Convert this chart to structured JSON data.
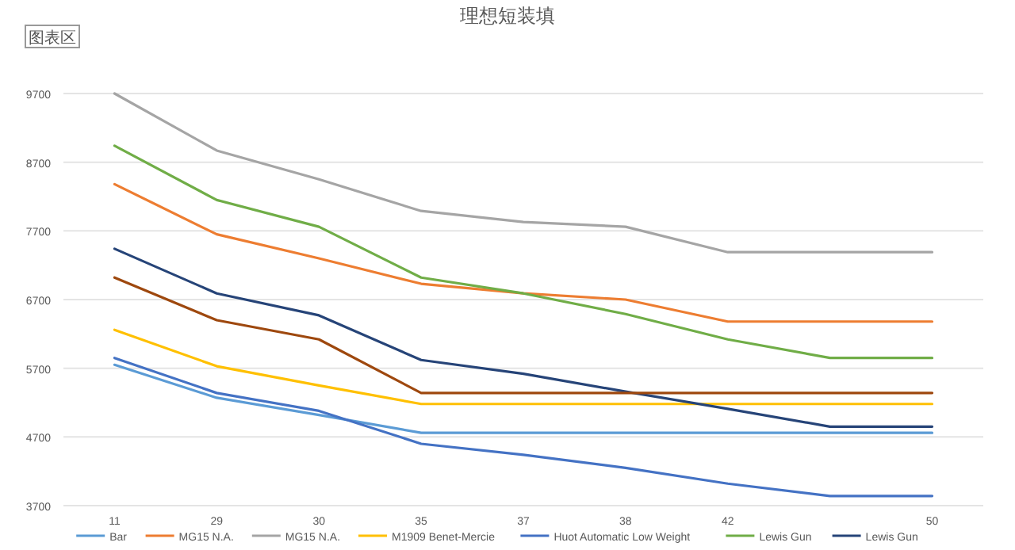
{
  "chart_data": {
    "type": "line",
    "title": "理想短装填",
    "annotations": [
      "图表区"
    ],
    "categories": [
      "11",
      "29",
      "30",
      "35",
      "37",
      "38",
      "42",
      null,
      "50"
    ],
    "ylim": [
      3700,
      9700
    ],
    "yticks": [
      3700,
      4700,
      5700,
      6700,
      7700,
      8700,
      9700
    ],
    "grid": "y",
    "legend": "bottom",
    "marker": "none",
    "line_style": "solid",
    "series": [
      {
        "name": "Bar",
        "color": "#5b9bd5",
        "values": [
          5750,
          5270,
          5020,
          4760,
          4760,
          4760,
          4760,
          4760,
          4760
        ]
      },
      {
        "name": "MG15 N.A.",
        "color": "#ed7d31",
        "values": [
          8380,
          7650,
          7300,
          6930,
          6790,
          6700,
          6380,
          6380,
          6380
        ]
      },
      {
        "name": "MG15 N.A.",
        "color": "#a5a5a5",
        "values": [
          9700,
          8870,
          8450,
          7990,
          7830,
          7760,
          7390,
          7390,
          7390
        ]
      },
      {
        "name": "M1909 Benet-Mercie",
        "color": "#ffc000",
        "values": [
          6260,
          5730,
          5450,
          5180,
          5180,
          5180,
          5180,
          5180,
          5180
        ]
      },
      {
        "name": "Huot Automatic Low Weight",
        "color": "#4472c4",
        "values": [
          5850,
          5340,
          5080,
          4600,
          4440,
          4250,
          4020,
          3840,
          3840
        ]
      },
      {
        "name": "Lewis Gun",
        "color": "#70ad47",
        "values": [
          8940,
          8150,
          7760,
          7020,
          6790,
          6490,
          6120,
          5850,
          5850
        ]
      },
      {
        "name": "Lewis Gun",
        "color": "#264478",
        "values": [
          7440,
          6790,
          6470,
          5820,
          5620,
          5360,
          5110,
          4850,
          4850
        ]
      },
      {
        "color": "#9e480e",
        "values": [
          7020,
          6400,
          6120,
          5340,
          5340,
          5340,
          5340,
          5340,
          5340
        ]
      }
    ]
  }
}
